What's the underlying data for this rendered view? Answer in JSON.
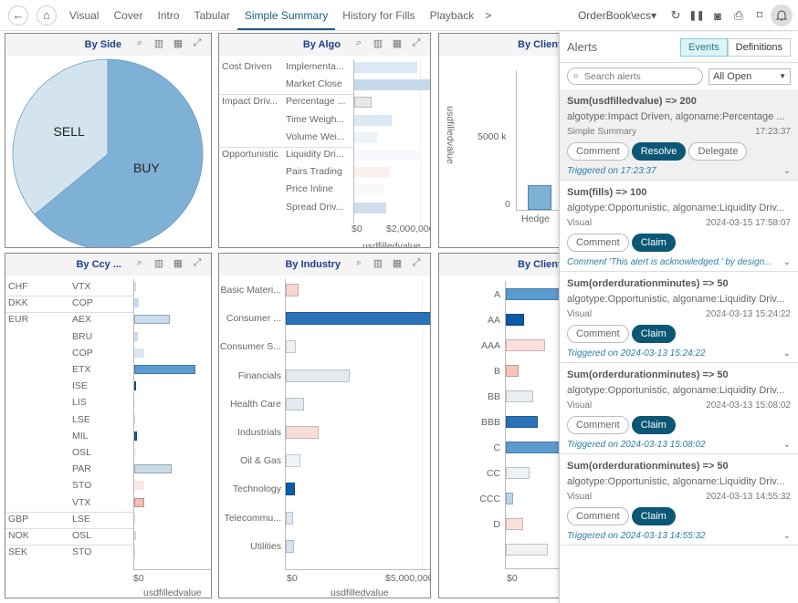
{
  "topbar": {
    "back_icon": "←",
    "home_icon": "⌂",
    "tabs": [
      "Visual",
      "Cover",
      "Intro",
      "Tabular",
      "Simple Summary",
      "History for Fills",
      "Playback"
    ],
    "active_tab": "Simple Summary",
    "more_icon": ">",
    "workspace": "OrderBook\\ecs▾",
    "icons": {
      "refresh": "↻",
      "pause": "❚❚",
      "snapshot": "◙",
      "pdf": "⎙",
      "bookmark": "⌑",
      "bell": "🔔"
    }
  },
  "panels": {
    "by_side": {
      "title": "By Side",
      "chart_data": {
        "type": "pie",
        "title": "By Side",
        "slices": [
          {
            "label": "BUY",
            "value": 64,
            "color": "#7fb1d6"
          },
          {
            "label": "SELL",
            "value": 36,
            "color": "#d3e4ee"
          }
        ]
      }
    },
    "by_algo": {
      "title": "By Algo",
      "chart_data": {
        "type": "bar",
        "title": "By Algo",
        "xlabel": "usdfilledvalue",
        "ticks": [
          "$0",
          "$2,000,000"
        ],
        "xlim": [
          0,
          2400000
        ],
        "groups": [
          {
            "name": "Cost Driven",
            "items": [
              {
                "label": "Implementa...",
                "value": 1950000,
                "color": "#dce8f3"
              },
              {
                "label": "Market Close",
                "value": 2450000,
                "color": "#c5d9ec"
              }
            ]
          },
          {
            "name": "Impact Driv...",
            "items": [
              {
                "label": "Percentage ...",
                "value": 550000,
                "color": "#e6e9ec"
              },
              {
                "label": "Time Weigh...",
                "value": 1150000,
                "color": "#dce8f3"
              },
              {
                "label": "Volume Wei...",
                "value": 700000,
                "color": "#eef3f8"
              }
            ]
          },
          {
            "name": "Opportunistic",
            "items": [
              {
                "label": "Liquidity Dri...",
                "value": 2050000,
                "color": "#f7f9fc"
              },
              {
                "label": "Pairs Trading",
                "value": 1100000,
                "color": "#fcf1ef"
              },
              {
                "label": "Price Inline",
                "value": 900000,
                "color": "#f7f9fa"
              },
              {
                "label": "Spread Driv...",
                "value": 1000000,
                "color": "#cfdff0"
              }
            ]
          }
        ]
      }
    },
    "by_client_top": {
      "title": "By Client",
      "chart_data": {
        "type": "bar",
        "title": "By Client",
        "ylabel": "usdfilledvalue",
        "yticks": [
          "0",
          "5000 k"
        ],
        "ylim": [
          0,
          10000000
        ],
        "categories": [
          "Hedge"
        ],
        "values": [
          1700000
        ]
      }
    },
    "by_ccy": {
      "title": "By Ccy ...",
      "chart_data": {
        "type": "bar",
        "title": "By Ccy ...",
        "xlabel": "usdfilledvalue",
        "ticks": [
          "$0"
        ],
        "rows": [
          {
            "ccy": "CHF",
            "ex": "VTX",
            "value": 2,
            "color": "#c9dcee"
          },
          {
            "ccy": "DKK",
            "ex": "COP",
            "value": 6,
            "color": "#c9dcee"
          },
          {
            "ccy": "EUR",
            "ex": "AEX",
            "value": 47,
            "color": "#c9dcee"
          },
          {
            "ccy": "",
            "ex": "BRU",
            "value": 5,
            "color": "#c9dcee"
          },
          {
            "ccy": "",
            "ex": "COP",
            "value": 13,
            "color": "#d9e7f3"
          },
          {
            "ccy": "",
            "ex": "ETX",
            "value": 82,
            "color": "#5b9bcd"
          },
          {
            "ccy": "",
            "ex": "ISE",
            "value": 2,
            "color": "#1a5fa8"
          },
          {
            "ccy": "",
            "ex": "LIS",
            "value": 0,
            "color": "#eee"
          },
          {
            "ccy": "",
            "ex": "LSE",
            "value": 1,
            "color": "#f2cbc4"
          },
          {
            "ccy": "",
            "ex": "MIL",
            "value": 4,
            "color": "#1a5fa8"
          },
          {
            "ccy": "",
            "ex": "OSL",
            "value": 3,
            "color": "#eef4f9"
          },
          {
            "ccy": "",
            "ex": "PAR",
            "value": 50,
            "color": "#c8dce8"
          },
          {
            "ccy": "",
            "ex": "STO",
            "value": 14,
            "color": "#fbe8e4"
          },
          {
            "ccy": "",
            "ex": "VTX",
            "value": 13,
            "color": "#f1bfb4"
          },
          {
            "ccy": "GBP",
            "ex": "LSE",
            "value": 1,
            "color": "#e3dada"
          },
          {
            "ccy": "NOK",
            "ex": "OSL",
            "value": 3,
            "color": "#c9dcee"
          },
          {
            "ccy": "SEK",
            "ex": "STO",
            "value": 1,
            "color": "#c9dcee"
          }
        ]
      }
    },
    "by_industry": {
      "title": "By Industry",
      "chart_data": {
        "type": "bar",
        "title": "By Industry",
        "xlabel": "usdfilledvalue",
        "ticks": [
          "$0",
          "$5,000,000"
        ],
        "xlim": [
          0,
          5000000
        ],
        "rows": [
          {
            "label": "Basic Materi...",
            "value": 470000,
            "color": "#f6d6d0"
          },
          {
            "label": "Consumer ...",
            "value": 5300000,
            "color": "#2a72b8"
          },
          {
            "label": "Consumer S...",
            "value": 370000,
            "color": "#eef2f5"
          },
          {
            "label": "Financials",
            "value": 2330000,
            "color": "#e3eaf0"
          },
          {
            "label": "Health Care",
            "value": 680000,
            "color": "#e3eaf0"
          },
          {
            "label": "Industrials",
            "value": 1200000,
            "color": "#f8dcd7"
          },
          {
            "label": "Oil & Gas",
            "value": 530000,
            "color": "#f1f5f9"
          },
          {
            "label": "Technology",
            "value": 320000,
            "color": "#0b5aa5"
          },
          {
            "label": "Telecommu...",
            "value": 270000,
            "color": "#dce8f4"
          },
          {
            "label": "Utilities",
            "value": 300000,
            "color": "#d4e3f2"
          }
        ]
      }
    },
    "by_client_bottom": {
      "title": "By Client",
      "chart_data": {
        "type": "bar",
        "title": "By Client",
        "ticks": [
          "$0"
        ],
        "rows": [
          {
            "label": "A",
            "value": 100,
            "color": "#5c9bcd"
          },
          {
            "label": "AA",
            "value": 33,
            "color": "#0b5aa5"
          },
          {
            "label": "AAA",
            "value": 70,
            "color": "#fbdfdb"
          },
          {
            "label": "B",
            "value": 22,
            "color": "#f6c4bb"
          },
          {
            "label": "BB",
            "value": 48,
            "color": "#e8eef2"
          },
          {
            "label": "BBB",
            "value": 56,
            "color": "#2a72b8"
          },
          {
            "label": "C",
            "value": 100,
            "color": "#5c9bcd"
          },
          {
            "label": "CC",
            "value": 42,
            "color": "#eef2f4"
          },
          {
            "label": "CCC",
            "value": 13,
            "color": "#b7d6e6"
          },
          {
            "label": "D",
            "value": 30,
            "color": "#fae0dc"
          },
          {
            "label": "",
            "value": 74,
            "color": "#f0f2f3"
          }
        ]
      }
    }
  },
  "alerts": {
    "title": "Alerts",
    "tabs": [
      "Events",
      "Definitions"
    ],
    "active_tab": "Events",
    "search_placeholder": "Search alerts",
    "filter": "All Open",
    "items": [
      {
        "title": "Sum(usdfilledvalue) => 200",
        "desc": "algotype:Impact Driven, algoname:Percentage ...",
        "source": "Simple Summary",
        "time": "17:23:37",
        "buttons": [
          "Comment",
          "Resolve",
          "Delegate"
        ],
        "primary": "Resolve",
        "footer": "Triggered on 17:23:37",
        "highlight": true
      },
      {
        "title": "Sum(fills) => 100",
        "desc": "algotype:Opportunistic, algoname:Liquidity Driv...",
        "source": "Visual",
        "time": "2024-03-15 17:58:07",
        "buttons": [
          "Comment",
          "Claim"
        ],
        "primary": "Claim",
        "footer": "Comment 'This alert is acknowledged.' by design...",
        "highlight": false
      },
      {
        "title": "Sum(orderdurationminutes) => 50",
        "desc": "algotype:Opportunistic, algoname:Liquidity Driv...",
        "source": "Visual",
        "time": "2024-03-13 15:24:22",
        "buttons": [
          "Comment",
          "Claim"
        ],
        "primary": "Claim",
        "footer": "Triggered on  2024-03-13 15:24:22",
        "highlight": false
      },
      {
        "title": "Sum(orderdurationminutes) => 50",
        "desc": "algotype:Opportunistic, algoname:Liquidity Driv...",
        "source": "Visual",
        "time": "2024-03-13 15:08:02",
        "buttons": [
          "Comment",
          "Claim"
        ],
        "primary": "Claim",
        "footer": "Triggered on  2024-03-13 15:08:02",
        "highlight": false
      },
      {
        "title": "Sum(orderdurationminutes) => 50",
        "desc": "algotype:Opportunistic, algoname:Liquidity Driv...",
        "source": "Visual",
        "time": "2024-03-13 14:55:32",
        "buttons": [
          "Comment",
          "Claim"
        ],
        "primary": "Claim",
        "footer": "Triggered on  2024-03-13 14:55:32",
        "highlight": false
      }
    ]
  },
  "panel_icons": {
    "search": "⌕",
    "excel": "▥",
    "table": "▦",
    "expand": "⤢"
  }
}
